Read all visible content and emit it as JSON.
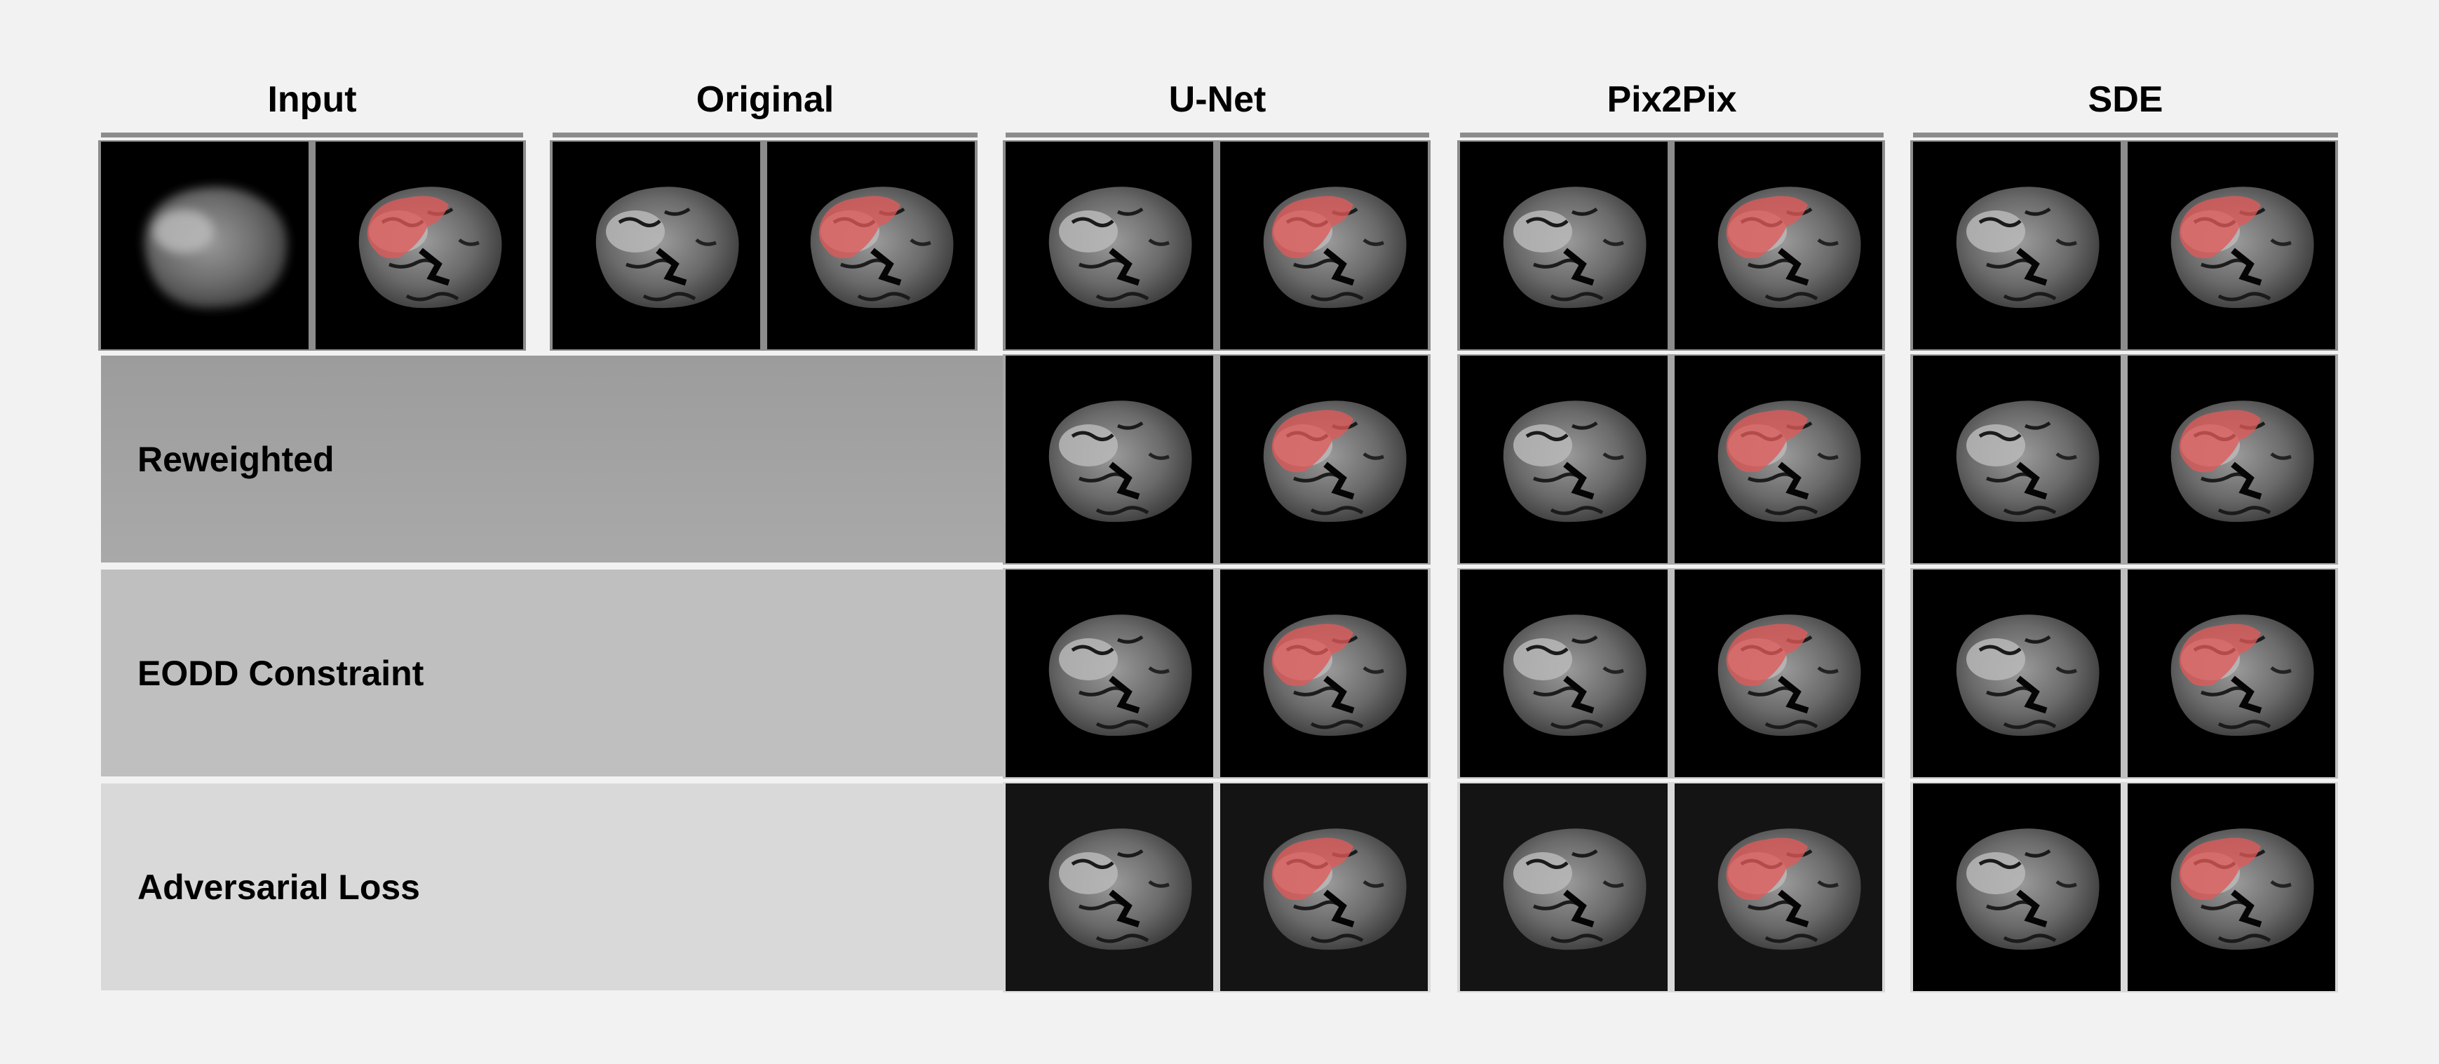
{
  "columns": [
    "Input",
    "Original",
    "U-Net",
    "Pix2Pix",
    "SDE"
  ],
  "rows": [
    "",
    "Reweighted",
    "EODD Constraint",
    "Adversarial Loss"
  ],
  "colors": {
    "page_bg": "#f2f2f2",
    "tumor_overlay": "#e05a5a",
    "row_band_shades": [
      "#8c8c8c",
      "#a6a6a6",
      "#bfbfbf",
      "#d9d9d9"
    ]
  }
}
